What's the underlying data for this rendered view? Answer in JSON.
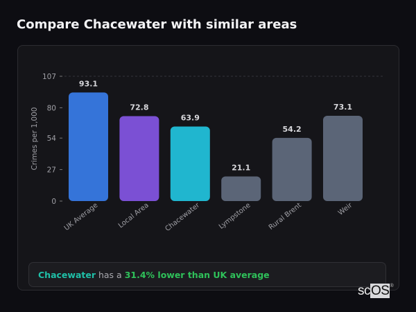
{
  "title": "Compare Chacewater with similar areas",
  "chart_data": {
    "type": "bar",
    "ylabel": "Crimes per 1,000",
    "ylim": [
      0,
      107
    ],
    "yticks": [
      0,
      27,
      54,
      80,
      107
    ],
    "grid": "dashed line at top tick only",
    "categories": [
      "UK Average",
      "Local Area",
      "Chacewater",
      "Lympstone",
      "Rural Brent",
      "Weir"
    ],
    "values": [
      93.1,
      72.8,
      63.9,
      21.1,
      54.2,
      73.1
    ],
    "value_labels": [
      "93.1",
      "72.8",
      "63.9",
      "21.1",
      "54.2",
      "73.1"
    ],
    "colors": [
      "#3574d9",
      "#7b50d4",
      "#20b6cf",
      "#5b6577",
      "#5b6577",
      "#5b6577"
    ]
  },
  "summary": {
    "area": "Chacewater",
    "middle": " has a ",
    "comparison": "31.4% lower than UK average",
    "area_color": "#1fc0a8",
    "comparison_color": "#2fc15a"
  },
  "logo": {
    "text_plain": "sc",
    "text_boxed": "OS",
    "mark": "®"
  }
}
